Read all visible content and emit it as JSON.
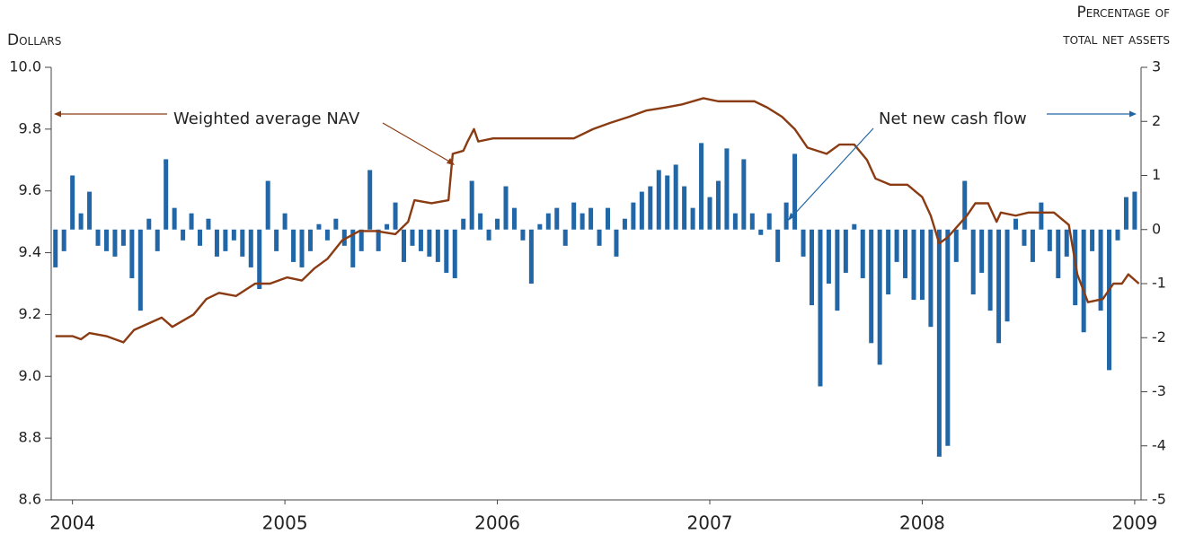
{
  "chart_data": {
    "type": "line",
    "ylabel": "Dollars",
    "y2label": [
      "Percentage of",
      "total net assets"
    ],
    "xlim": [
      2003.9,
      2009.03
    ],
    "xticks": [
      2004,
      2005,
      2006,
      2007,
      2008,
      2009
    ],
    "ylim": [
      8.6,
      10
    ],
    "yticks": [
      8.6,
      8.8,
      {
        "value": 9,
        "label": "9.0"
      },
      9.2,
      9.4,
      9.6,
      9.8,
      {
        "value": 10,
        "label": "10.0"
      }
    ],
    "y2lim": [
      -5,
      3
    ],
    "y2ticks": [
      -5,
      -4,
      -3,
      -2,
      -1,
      0,
      1,
      2,
      3
    ],
    "series": [
      {
        "name": "Weighted average NAV",
        "type": "line",
        "color": "#8a3b12",
        "x": [
          2003.92,
          2004.0,
          2004.04,
          2004.08,
          2004.16,
          2004.24,
          2004.29,
          2004.42,
          2004.47,
          2004.57,
          2004.63,
          2004.69,
          2004.77,
          2004.86,
          2004.93,
          2005.01,
          2005.08,
          2005.14,
          2005.2,
          2005.27,
          2005.35,
          2005.43,
          2005.52,
          2005.58,
          2005.61,
          2005.69,
          2005.77,
          2005.79,
          2005.84,
          2005.86,
          2005.89,
          2005.91,
          2005.98,
          2006.13,
          2006.19,
          2006.3,
          2006.36,
          2006.45,
          2006.53,
          2006.62,
          2006.7,
          2006.79,
          2006.87,
          2006.97,
          2007.04,
          2007.13,
          2007.21,
          2007.27,
          2007.34,
          2007.4,
          2007.46,
          2007.55,
          2007.61,
          2007.68,
          2007.74,
          2007.78,
          2007.85,
          2007.93,
          2008.0,
          2008.04,
          2008.08,
          2008.12,
          2008.21,
          2008.25,
          2008.31,
          2008.35,
          2008.37,
          2008.44,
          2008.5,
          2008.56,
          2008.62,
          2008.69,
          2008.73,
          2008.78,
          2008.85,
          2008.9,
          2008.94,
          2008.97,
          2009.02
        ],
        "values": [
          9.13,
          9.13,
          9.12,
          9.14,
          9.13,
          9.11,
          9.15,
          9.19,
          9.16,
          9.2,
          9.25,
          9.27,
          9.26,
          9.3,
          9.3,
          9.32,
          9.31,
          9.35,
          9.38,
          9.44,
          9.47,
          9.47,
          9.46,
          9.5,
          9.57,
          9.56,
          9.57,
          9.72,
          9.73,
          9.76,
          9.8,
          9.76,
          9.77,
          9.77,
          9.77,
          9.77,
          9.77,
          9.8,
          9.82,
          9.84,
          9.86,
          9.87,
          9.88,
          9.9,
          9.89,
          9.89,
          9.89,
          9.87,
          9.84,
          9.8,
          9.74,
          9.72,
          9.75,
          9.75,
          9.7,
          9.64,
          9.62,
          9.62,
          9.58,
          9.52,
          9.43,
          9.45,
          9.52,
          9.56,
          9.56,
          9.5,
          9.53,
          9.52,
          9.53,
          9.53,
          9.53,
          9.49,
          9.33,
          9.24,
          9.25,
          9.3,
          9.3,
          9.33,
          9.3
        ]
      },
      {
        "name": "Net new cash flow",
        "type": "bar",
        "axis": "y2",
        "color": "#2166a6",
        "x": [
          2003.92,
          2003.96,
          2004.0,
          2004.04,
          2004.08,
          2004.12,
          2004.16,
          2004.2,
          2004.24,
          2004.28,
          2004.32,
          2004.36,
          2004.4,
          2004.44,
          2004.48,
          2004.52,
          2004.56,
          2004.6,
          2004.64,
          2004.68,
          2004.72,
          2004.76,
          2004.8,
          2004.84,
          2004.88,
          2004.92,
          2004.96,
          2005.0,
          2005.04,
          2005.08,
          2005.12,
          2005.16,
          2005.2,
          2005.24,
          2005.28,
          2005.32,
          2005.36,
          2005.4,
          2005.44,
          2005.48,
          2005.52,
          2005.56,
          2005.6,
          2005.64,
          2005.68,
          2005.72,
          2005.76,
          2005.8,
          2005.84,
          2005.88,
          2005.92,
          2005.96,
          2006.0,
          2006.04,
          2006.08,
          2006.12,
          2006.16,
          2006.2,
          2006.24,
          2006.28,
          2006.32,
          2006.36,
          2006.4,
          2006.44,
          2006.48,
          2006.52,
          2006.56,
          2006.6,
          2006.64,
          2006.68,
          2006.72,
          2006.76,
          2006.8,
          2006.84,
          2006.88,
          2006.92,
          2006.96,
          2007.0,
          2007.04,
          2007.08,
          2007.12,
          2007.16,
          2007.2,
          2007.24,
          2007.28,
          2007.32,
          2007.36,
          2007.4,
          2007.44,
          2007.48,
          2007.52,
          2007.56,
          2007.6,
          2007.64,
          2007.68,
          2007.72,
          2007.76,
          2007.8,
          2007.84,
          2007.88,
          2007.92,
          2007.96,
          2008.0,
          2008.04,
          2008.08,
          2008.12,
          2008.16,
          2008.2,
          2008.24,
          2008.28,
          2008.32,
          2008.36,
          2008.4,
          2008.44,
          2008.48,
          2008.52,
          2008.56,
          2008.6,
          2008.64,
          2008.68,
          2008.72,
          2008.76,
          2008.8,
          2008.84,
          2008.88,
          2008.92,
          2008.96,
          2009.0
        ],
        "values": [
          -0.7,
          -0.4,
          1.0,
          0.3,
          0.7,
          -0.3,
          -0.4,
          -0.5,
          -0.3,
          -0.9,
          -1.5,
          0.2,
          -0.4,
          1.3,
          0.4,
          -0.2,
          0.3,
          -0.3,
          0.2,
          -0.5,
          -0.4,
          -0.2,
          -0.5,
          -0.7,
          -1.1,
          0.9,
          -0.4,
          0.3,
          -0.6,
          -0.7,
          -0.4,
          0.1,
          -0.2,
          0.2,
          -0.3,
          -0.7,
          -0.4,
          1.1,
          -0.4,
          0.1,
          0.5,
          -0.6,
          -0.3,
          -0.4,
          -0.5,
          -0.6,
          -0.8,
          -0.9,
          0.2,
          0.9,
          0.3,
          -0.2,
          0.2,
          0.8,
          0.4,
          -0.2,
          -1.0,
          0.1,
          0.3,
          0.4,
          -0.3,
          0.5,
          0.3,
          0.4,
          -0.3,
          0.4,
          -0.5,
          0.2,
          0.5,
          0.7,
          0.8,
          1.1,
          1.0,
          1.2,
          0.8,
          0.4,
          1.6,
          0.6,
          0.9,
          1.5,
          0.3,
          1.3,
          0.3,
          -0.1,
          0.3,
          -0.6,
          0.5,
          1.4,
          -0.5,
          -1.4,
          -2.9,
          -1.0,
          -1.5,
          -0.8,
          0.1,
          -0.9,
          -2.1,
          -2.5,
          -1.2,
          -0.6,
          -0.9,
          -1.3,
          -1.3,
          -1.8,
          -4.2,
          -4.0,
          -0.6,
          0.9,
          -1.2,
          -0.8,
          -1.5,
          -2.1,
          -1.7,
          0.2,
          -0.3,
          -0.6,
          0.5,
          -0.4,
          -0.9,
          -0.5,
          -1.4,
          -1.9,
          -0.4,
          -1.5,
          -2.6,
          -0.2,
          0.6,
          0.7
        ]
      }
    ]
  }
}
